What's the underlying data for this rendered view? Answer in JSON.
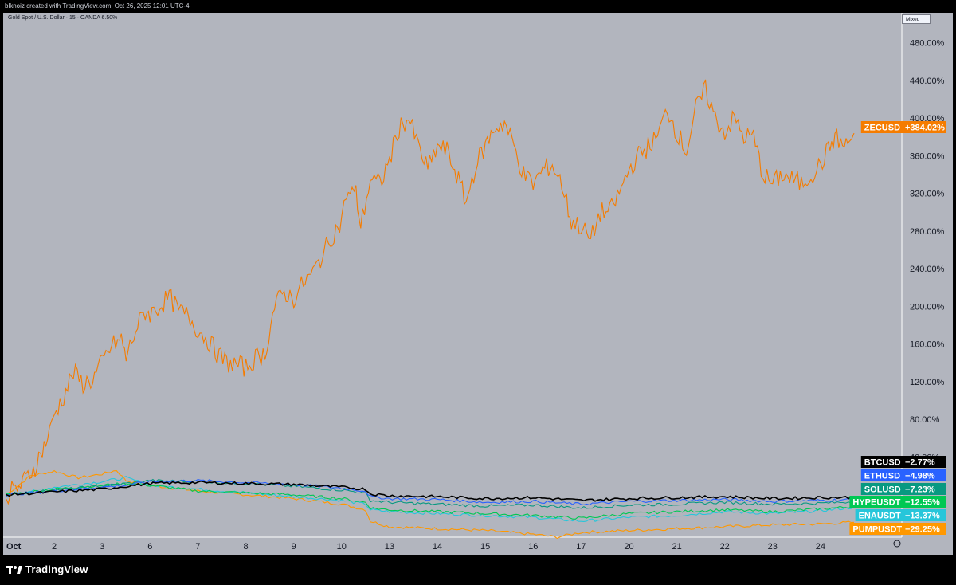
{
  "header": {
    "attribution": "blknoiz created with TradingView.com, Oct 26, 2025 12:01 UTC-4",
    "symbol_info": "Gold Spot / U.S. Dollar · 15 · OANDA  6.50%",
    "scale_mode": "Mixed"
  },
  "footer": {
    "brand": "TradingView"
  },
  "colors": {
    "background": "#b2b5be",
    "zec": "#f57c00",
    "btc": "#000000",
    "eth": "#2962ff",
    "sol": "#089981",
    "hype": "#00c853",
    "ena": "#26c6da",
    "pump": "#ff9800"
  },
  "chart_data": {
    "type": "line",
    "ylim": [
      -40,
      500
    ],
    "y_ticks": [
      "480.00%",
      "440.00%",
      "400.00%",
      "360.00%",
      "320.00%",
      "280.00%",
      "240.00%",
      "200.00%",
      "160.00%",
      "120.00%",
      "80.00%",
      "40.00%"
    ],
    "y_tick_values": [
      480,
      440,
      400,
      360,
      320,
      280,
      240,
      200,
      160,
      120,
      80,
      40
    ],
    "x_ticks": [
      "Oct",
      "2",
      "3",
      "6",
      "7",
      "8",
      "9",
      "10",
      "13",
      "14",
      "15",
      "16",
      "17",
      "20",
      "21",
      "22",
      "23",
      "24"
    ],
    "x_tick_positions": [
      0,
      1,
      2,
      3,
      4,
      5,
      6,
      7,
      8,
      9,
      10,
      11,
      12,
      13,
      14,
      15,
      16,
      17
    ],
    "x_range": [
      0,
      17.7
    ],
    "series": [
      {
        "name": "ZECUSD",
        "label": "ZECUSD",
        "value_label": "+384.02%",
        "color": "#f57c00",
        "x": [
          0,
          0.3,
          0.6,
          0.9,
          1.0,
          1.2,
          1.4,
          1.6,
          1.8,
          2.0,
          2.2,
          2.4,
          2.5,
          2.7,
          2.9,
          3.0,
          3.2,
          3.4,
          3.6,
          3.8,
          4.0,
          4.2,
          4.4,
          4.6,
          4.8,
          5.0,
          5.2,
          5.4,
          5.6,
          5.8,
          6.0,
          6.2,
          6.4,
          6.6,
          6.8,
          7.0,
          7.1,
          7.3,
          7.4,
          7.6,
          7.8,
          8.0,
          8.2,
          8.4,
          8.6,
          8.8,
          9.0,
          9.2,
          9.4,
          9.6,
          9.8,
          10.0,
          10.2,
          10.4,
          10.6,
          10.8,
          11.0,
          11.2,
          11.4,
          11.6,
          11.7,
          11.8,
          12.0,
          12.2,
          12.4,
          12.6,
          12.8,
          13.0,
          13.2,
          13.4,
          13.6,
          13.8,
          14.0,
          14.2,
          14.4,
          14.6,
          14.8,
          15.0,
          15.2,
          15.4,
          15.6,
          15.8,
          16.0,
          16.2,
          16.4,
          16.6,
          16.8,
          17.0,
          17.2,
          17.3,
          17.5,
          17.6,
          17.7
        ],
        "y": [
          0,
          10,
          30,
          65,
          85,
          105,
          130,
          118,
          122,
          140,
          158,
          165,
          145,
          175,
          195,
          192,
          200,
          210,
          195,
          190,
          175,
          165,
          150,
          140,
          138,
          135,
          145,
          150,
          200,
          215,
          208,
          225,
          235,
          255,
          275,
          290,
          320,
          320,
          285,
          335,
          330,
          355,
          390,
          400,
          370,
          345,
          370,
          365,
          340,
          310,
          350,
          370,
          390,
          395,
          370,
          340,
          330,
          345,
          350,
          330,
          310,
          290,
          285,
          270,
          300,
          300,
          320,
          345,
          360,
          370,
          380,
          410,
          385,
          365,
          410,
          430,
          400,
          385,
          400,
          380,
          380,
          340,
          330,
          340,
          335,
          330,
          340,
          350,
          370,
          380,
          370,
          375,
          384
        ]
      },
      {
        "name": "BTCUSD",
        "label": "BTCUSD",
        "value_label": "−2.77%",
        "color": "#000000",
        "x": [
          0,
          1,
          2,
          2.5,
          3,
          4,
          5,
          6,
          7,
          7.5,
          7.6,
          8,
          9,
          10,
          11,
          12,
          13,
          14,
          15,
          16,
          17,
          17.7
        ],
        "y": [
          0,
          3,
          6,
          9,
          12,
          13,
          12,
          11,
          8,
          6,
          1,
          -1,
          -2,
          -4,
          -3,
          -6,
          -4,
          -3,
          -2,
          -4,
          -3,
          -2.77
        ]
      },
      {
        "name": "ETHUSD",
        "label": "ETHUSD",
        "value_label": "−4.98%",
        "color": "#2962ff",
        "x": [
          0,
          1,
          2,
          2.5,
          3,
          4,
          5,
          6,
          7,
          7.5,
          7.6,
          8,
          9,
          10,
          11,
          12,
          13,
          14,
          15,
          16,
          17,
          17.7
        ],
        "y": [
          0,
          4,
          8,
          10,
          14,
          15,
          13,
          11,
          7,
          4,
          -2,
          -4,
          -5,
          -8,
          -7,
          -10,
          -7,
          -6,
          -5,
          -7,
          -6,
          -4.98
        ]
      },
      {
        "name": "SOLUSD",
        "label": "SOLUSD",
        "value_label": "−7.23%",
        "color": "#089981",
        "x": [
          0,
          1,
          2,
          2.5,
          3,
          4,
          5,
          6,
          7,
          7.5,
          7.6,
          8,
          9,
          10,
          11,
          12,
          13,
          14,
          15,
          16,
          17,
          17.7
        ],
        "y": [
          0,
          5,
          9,
          12,
          15,
          14,
          12,
          9,
          5,
          2,
          -6,
          -8,
          -10,
          -12,
          -11,
          -14,
          -11,
          -10,
          -8,
          -10,
          -9,
          -7.23
        ]
      },
      {
        "name": "HYPEUSDT",
        "label": "HYPEUSDT",
        "value_label": "−12.55%",
        "color": "#00c853",
        "x": [
          0,
          1,
          2,
          2.5,
          3,
          4,
          5,
          6,
          7,
          7.5,
          7.6,
          8,
          9,
          10,
          11,
          12,
          13,
          14,
          15,
          16,
          17,
          17.7
        ],
        "y": [
          0,
          6,
          10,
          12,
          10,
          4,
          2,
          0,
          -4,
          -8,
          -14,
          -16,
          -18,
          -20,
          -22,
          -25,
          -20,
          -18,
          -16,
          -18,
          -15,
          -12.55
        ]
      },
      {
        "name": "ENAUSDT",
        "label": "ENAUSDT",
        "value_label": "−13.37%",
        "color": "#26c6da",
        "x": [
          0,
          1,
          2,
          2.5,
          3,
          4,
          5,
          6,
          7,
          7.5,
          7.6,
          8,
          9,
          10,
          11,
          12,
          13,
          14,
          15,
          16,
          17,
          17.7
        ],
        "y": [
          0,
          8,
          14,
          18,
          10,
          6,
          2,
          -2,
          -6,
          -10,
          -16,
          -18,
          -20,
          -22,
          -24,
          -28,
          -24,
          -22,
          -18,
          -20,
          -17,
          -13.37
        ]
      },
      {
        "name": "PUMPUSDT",
        "label": "PUMPUSDT",
        "value_label": "−29.25%",
        "color": "#ff9800",
        "x": [
          0,
          0.5,
          1,
          1.5,
          2,
          2.3,
          2.5,
          3,
          4,
          5,
          6,
          7,
          7.5,
          7.6,
          8,
          9,
          10,
          11,
          11.5,
          12,
          13,
          14,
          15,
          16,
          17,
          17.7
        ],
        "y": [
          0,
          20,
          25,
          18,
          22,
          26,
          15,
          10,
          4,
          0,
          -4,
          -10,
          -16,
          -28,
          -34,
          -36,
          -38,
          -42,
          -45,
          -40,
          -38,
          -36,
          -34,
          -32,
          -31,
          -29.25
        ]
      }
    ]
  }
}
